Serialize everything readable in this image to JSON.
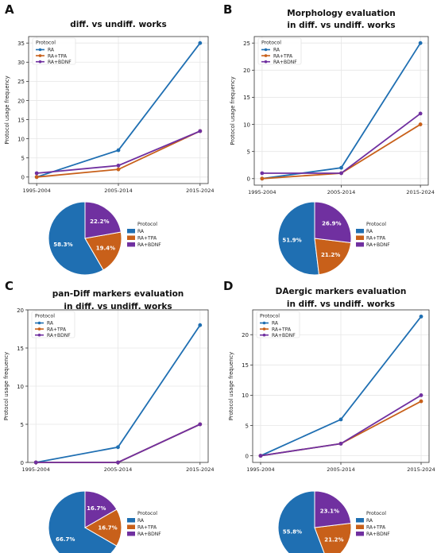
{
  "colors": {
    "RA": "#1f6fb2",
    "RA+TPA": "#c8601a",
    "RA+BDNF": "#7030a0"
  },
  "chart_data": [
    {
      "panel": "A",
      "type": "line",
      "title": [
        "diff. vs undiff. works"
      ],
      "ylabel": "Protocol usage frequency",
      "categories": [
        "1995-2004",
        "2005-2014",
        "2015-2024"
      ],
      "ylim": [
        -1.7,
        36.7
      ],
      "yticks": [
        0,
        5,
        10,
        15,
        20,
        25,
        30,
        35
      ],
      "grid": true,
      "legend": {
        "title": "Protocol",
        "placement": "top-left"
      },
      "series": [
        {
          "name": "RA",
          "values": [
            0,
            7,
            35
          ]
        },
        {
          "name": "RA+TPA",
          "values": [
            0,
            2,
            12
          ]
        },
        {
          "name": "RA+BDNF",
          "values": [
            1,
            3,
            12
          ]
        }
      ],
      "pie": {
        "type": "pie",
        "legend_title": "Protocol",
        "slices": [
          {
            "name": "RA",
            "value": 58.3,
            "label": "58.3%"
          },
          {
            "name": "RA+TPA",
            "value": 19.4,
            "label": "19.4%"
          },
          {
            "name": "RA+BDNF",
            "value": 22.2,
            "label": "22.2%"
          }
        ]
      }
    },
    {
      "panel": "B",
      "type": "line",
      "title": [
        "Morphology evaluation",
        "in diff. vs undiff. works"
      ],
      "ylabel": "Protocol usage frequency",
      "categories": [
        "1995-2004",
        "2005-2014",
        "2015-2024"
      ],
      "ylim": [
        -1.2,
        26.2
      ],
      "yticks": [
        0,
        5,
        10,
        15,
        20,
        25
      ],
      "grid": true,
      "legend": {
        "title": "Protocol",
        "placement": "top-left"
      },
      "series": [
        {
          "name": "RA",
          "values": [
            0,
            2,
            25
          ]
        },
        {
          "name": "RA+TPA",
          "values": [
            0,
            1,
            10
          ]
        },
        {
          "name": "RA+BDNF",
          "values": [
            1,
            1,
            12
          ]
        }
      ],
      "pie": {
        "type": "pie",
        "legend_title": "Protocol",
        "slices": [
          {
            "name": "RA",
            "value": 51.9,
            "label": "51.9%"
          },
          {
            "name": "RA+TPA",
            "value": 21.2,
            "label": "21.2%"
          },
          {
            "name": "RA+BDNF",
            "value": 26.9,
            "label": "26.9%"
          }
        ]
      }
    },
    {
      "panel": "C",
      "type": "line",
      "title": [
        "pan-Diff markers evaluation",
        "in diff. vs undiff. works"
      ],
      "ylabel": "Protocol usage frequency",
      "categories": [
        "1995-2004",
        "2005-2014",
        "2015-2024"
      ],
      "ylim": [
        0,
        20
      ],
      "yticks": [
        0,
        5,
        10,
        15,
        20
      ],
      "grid": true,
      "legend": {
        "title": "Protocol",
        "placement": "top-left"
      },
      "series": [
        {
          "name": "RA",
          "values": [
            0,
            2,
            18
          ]
        },
        {
          "name": "RA+TPA",
          "values": [
            0,
            0,
            5
          ]
        },
        {
          "name": "RA+BDNF",
          "values": [
            0,
            0,
            5
          ]
        }
      ],
      "pie": {
        "type": "pie",
        "legend_title": "Protocol",
        "slices": [
          {
            "name": "RA",
            "value": 66.7,
            "label": "66.7%"
          },
          {
            "name": "RA+TPA",
            "value": 16.7,
            "label": "16.7%"
          },
          {
            "name": "RA+BDNF",
            "value": 16.7,
            "label": "16.7%"
          }
        ]
      }
    },
    {
      "panel": "D",
      "type": "line",
      "title": [
        "DAergic markers evaluation",
        "in diff. vs undiff. works"
      ],
      "ylabel": "Protocol usage frequency",
      "categories": [
        "1995-2004",
        "2005-2014",
        "2015-2024"
      ],
      "ylim": [
        -1.1,
        24.1
      ],
      "yticks": [
        0,
        5,
        10,
        15,
        20
      ],
      "grid": true,
      "legend": {
        "title": "Protocol",
        "placement": "top-left"
      },
      "series": [
        {
          "name": "RA",
          "values": [
            0,
            6,
            23
          ]
        },
        {
          "name": "RA+TPA",
          "values": [
            0,
            2,
            9
          ]
        },
        {
          "name": "RA+BDNF",
          "values": [
            0,
            2,
            10
          ]
        }
      ],
      "pie": {
        "type": "pie",
        "legend_title": "Protocol",
        "slices": [
          {
            "name": "RA",
            "value": 55.8,
            "label": "55.8%"
          },
          {
            "name": "RA+TPA",
            "value": 21.2,
            "label": "21.2%"
          },
          {
            "name": "RA+BDNF",
            "value": 23.1,
            "label": "23.1%"
          }
        ]
      }
    }
  ]
}
